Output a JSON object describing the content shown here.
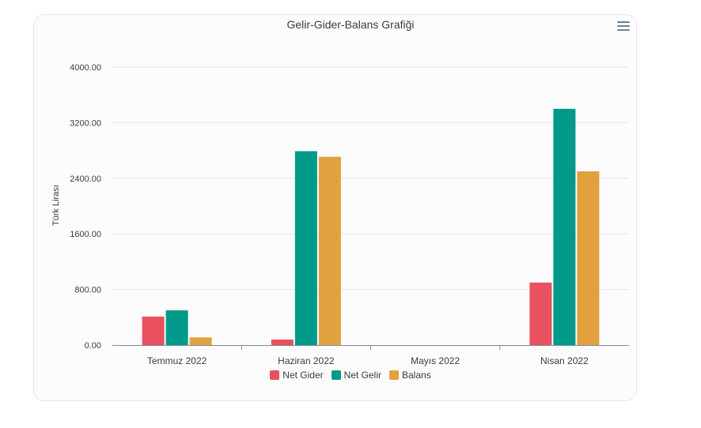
{
  "chart_data": {
    "type": "bar",
    "title": "Gelir-Gider-Balans Grafiği",
    "ylabel": "Türk Lirası",
    "xlabel": "",
    "categories": [
      "Temmuz 2022",
      "Haziran 2022",
      "Mayıs 2022",
      "Nisan 2022"
    ],
    "series": [
      {
        "name": "Net Gider",
        "color": "#e8515d",
        "values": [
          410,
          80,
          0,
          900
        ]
      },
      {
        "name": "Net Gelir",
        "color": "#00998a",
        "values": [
          500,
          2790,
          0,
          3400
        ]
      },
      {
        "name": "Balans",
        "color": "#e2a03f",
        "values": [
          110,
          2710,
          0,
          2500
        ]
      }
    ],
    "ylim": [
      0,
      4000
    ],
    "yticks": [
      "0.00",
      "800.00",
      "1600.00",
      "2400.00",
      "3200.00",
      "4000.00"
    ],
    "grid": true,
    "legend_position": "bottom"
  },
  "toolbar": {
    "menu_icon": "hamburger-menu-icon"
  }
}
